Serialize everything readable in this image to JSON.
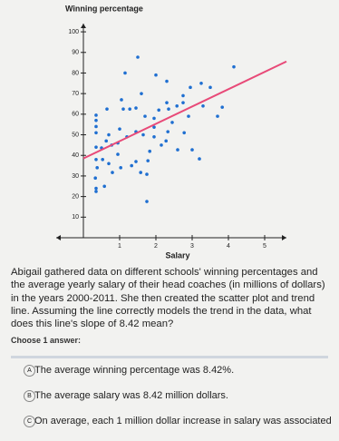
{
  "chart_data": {
    "type": "scatter",
    "title": "Winning percentage",
    "x_label": "Salary",
    "xlim": [
      -0.75,
      5.6
    ],
    "ylim": [
      0,
      104
    ],
    "xticks": [
      1,
      2,
      3,
      4,
      5
    ],
    "yticks": [
      10,
      20,
      30,
      40,
      50,
      60,
      70,
      80,
      90,
      100
    ],
    "color": "#1f6fd1",
    "trend_color": "#e84a78",
    "trend": {
      "x": [
        0,
        5.6
      ],
      "y": [
        38.5,
        85.6
      ]
    },
    "x": [
      1.5,
      1.15,
      2.0,
      2.3,
      4.15,
      3.25,
      2.95,
      3.5,
      2.75,
      1.6,
      1.05,
      1.45,
      1.1,
      1.28,
      0.65,
      0.35,
      0.35,
      0.35,
      0.35,
      0.35,
      0.35,
      0.38,
      0.33,
      0.35,
      0.35,
      0.58,
      1.7,
      1.95,
      2.08,
      2.3,
      2.35,
      2.58,
      2.75,
      2.9,
      3.3,
      3.83,
      3.7,
      2.78,
      2.33,
      2.28,
      2.15,
      1.95,
      1.65,
      1.45,
      1.2,
      1.0,
      0.7,
      0.63,
      0.78,
      0.95,
      0.5,
      0.53,
      0.7,
      0.95,
      1.03,
      1.33,
      1.45,
      1.83,
      1.78,
      2.6,
      3.0,
      3.2,
      1.58,
      1.75,
      0.8,
      1.75,
      1.95,
      2.45
    ],
    "y": [
      87.7,
      80,
      79,
      76,
      83,
      75,
      73,
      73,
      69,
      70,
      67,
      63,
      62.5,
      62.5,
      62.5,
      59.5,
      57,
      54,
      51,
      44,
      38,
      34,
      29,
      24,
      22.5,
      25,
      59,
      58,
      62,
      65.6,
      62.5,
      64,
      65.6,
      59,
      64,
      63.4,
      59,
      51,
      51.5,
      47,
      45,
      49,
      50,
      51.5,
      49,
      52.8,
      50,
      47,
      45,
      46,
      43.6,
      38,
      36,
      40.5,
      34,
      35,
      37,
      42,
      37.4,
      42.7,
      42.7,
      38.3,
      31.7,
      30.8,
      31.7,
      17.6,
      53.7,
      56
    ]
  },
  "question": {
    "text": "Abigail gathered data on different schools' winning percentages and the average yearly salary of their head coaches (in millions of dollars) in the years 2000-2011. She then created the scatter plot and trend line. Assuming the line correctly models the trend in the data, what does this line's slope of 8.42 mean?",
    "prompt": "Choose 1 answer:",
    "choices": [
      {
        "letter": "A",
        "text": "The average winning percentage was 8.42%."
      },
      {
        "letter": "B",
        "text": "The average salary was 8.42 million dollars."
      },
      {
        "letter": "C",
        "text": "On average, each 1 million dollar increase in salary was associated"
      }
    ]
  }
}
